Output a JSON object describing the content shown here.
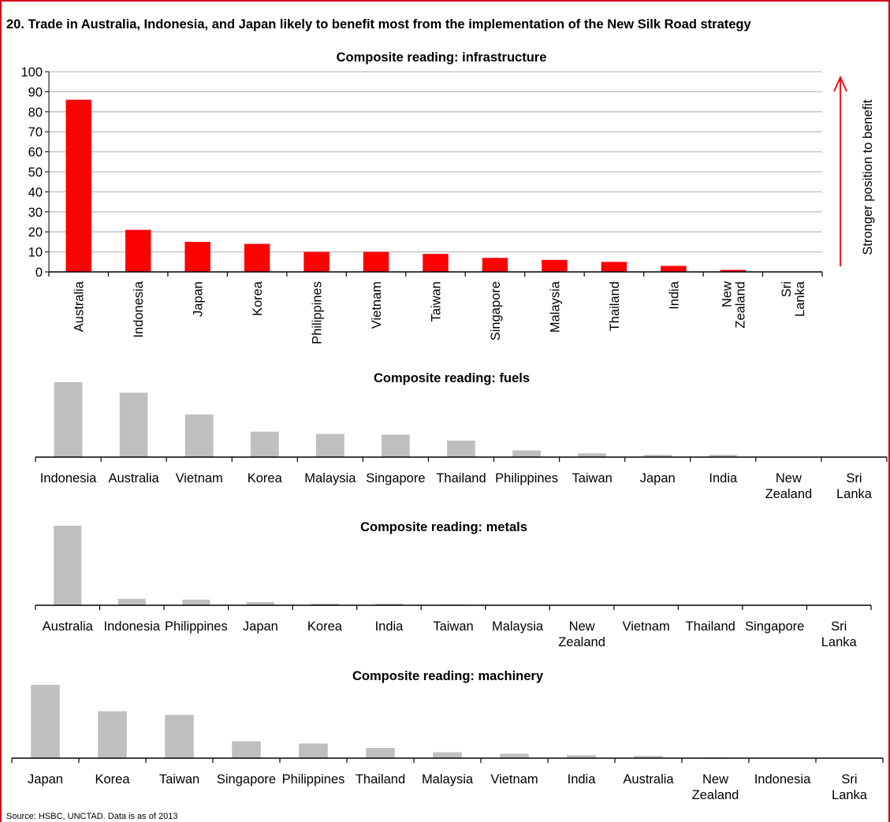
{
  "title": "20. Trade in Australia, Indonesia, and Japan likely to benefit most from the implementation of the New Silk Road strategy",
  "source": "Source: HSBC, UNCTAD. Data is as of 2013",
  "annotation": "Stronger position to benefit",
  "colors": {
    "frame": "#d0021b",
    "highlight": "#ff0000",
    "grey": "#bfbfbf",
    "grid": "#bfbfbf"
  },
  "chart_data": [
    {
      "type": "bar",
      "title": "Composite reading: infrastructure",
      "categories": [
        "Australia",
        "Indonesia",
        "Japan",
        "Korea",
        "Philippines",
        "Vietnam",
        "Taiwan",
        "Singapore",
        "Malaysia",
        "Thailand",
        "India",
        "New Zealand",
        "Sri Lanka"
      ],
      "values": [
        86,
        21,
        15,
        14,
        10,
        10,
        9,
        7,
        6,
        5,
        3,
        1,
        0
      ],
      "ylim": [
        0,
        100
      ],
      "yticks": [
        0,
        10,
        20,
        30,
        40,
        50,
        60,
        70,
        80,
        90,
        100
      ],
      "grid": true
    },
    {
      "type": "bar",
      "title": "Composite reading: fuels",
      "categories": [
        "Indonesia",
        "Australia",
        "Vietnam",
        "Korea",
        "Malaysia",
        "Singapore",
        "Thailand",
        "Philippines",
        "Taiwan",
        "Japan",
        "India",
        "New Zealand",
        "Sri Lanka"
      ],
      "values": [
        100,
        86,
        57,
        34,
        31,
        30,
        22,
        9,
        5,
        3,
        3,
        0,
        0
      ]
    },
    {
      "type": "bar",
      "title": "Composite reading: metals",
      "categories": [
        "Australia",
        "Indonesia",
        "Philippines",
        "Japan",
        "Korea",
        "India",
        "Taiwan",
        "Malaysia",
        "New Zealand",
        "Vietnam",
        "Thailand",
        "Singapore",
        "Sri Lanka"
      ],
      "values": [
        100,
        8,
        7,
        4,
        2,
        2,
        1,
        0.5,
        0,
        0,
        0,
        0,
        0
      ]
    },
    {
      "type": "bar",
      "title": "Composite reading: machinery",
      "categories": [
        "Japan",
        "Korea",
        "Taiwan",
        "Singapore",
        "Philippines",
        "Thailand",
        "Malaysia",
        "Vietnam",
        "India",
        "Australia",
        "New Zealand",
        "Indonesia",
        "Sri Lanka"
      ],
      "values": [
        100,
        64,
        59,
        23,
        20,
        14,
        8,
        6,
        4,
        3,
        1,
        0,
        0
      ]
    }
  ]
}
